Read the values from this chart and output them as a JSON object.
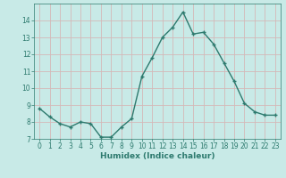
{
  "x": [
    0,
    1,
    2,
    3,
    4,
    5,
    6,
    7,
    8,
    9,
    10,
    11,
    12,
    13,
    14,
    15,
    16,
    17,
    18,
    19,
    20,
    21,
    22,
    23
  ],
  "y": [
    8.8,
    8.3,
    7.9,
    7.7,
    8.0,
    7.9,
    7.1,
    7.1,
    7.7,
    8.2,
    10.7,
    11.8,
    13.0,
    13.6,
    14.5,
    13.2,
    13.3,
    12.6,
    11.5,
    10.4,
    9.1,
    8.6,
    8.4,
    8.4
  ],
  "line_color": "#2d7a6e",
  "marker": "+",
  "marker_size": 3.5,
  "background_color": "#c8eae7",
  "grid_color": "#d4b8b8",
  "xlabel": "Humidex (Indice chaleur)",
  "ylim": [
    7,
    15
  ],
  "xlim": [
    -0.5,
    23.5
  ],
  "yticks": [
    7,
    8,
    9,
    10,
    11,
    12,
    13,
    14
  ],
  "xticks": [
    0,
    1,
    2,
    3,
    4,
    5,
    6,
    7,
    8,
    9,
    10,
    11,
    12,
    13,
    14,
    15,
    16,
    17,
    18,
    19,
    20,
    21,
    22,
    23
  ],
  "tick_label_fontsize": 5.5,
  "xlabel_fontsize": 6.5,
  "line_width": 1.0,
  "marker_linewidth": 1.0
}
